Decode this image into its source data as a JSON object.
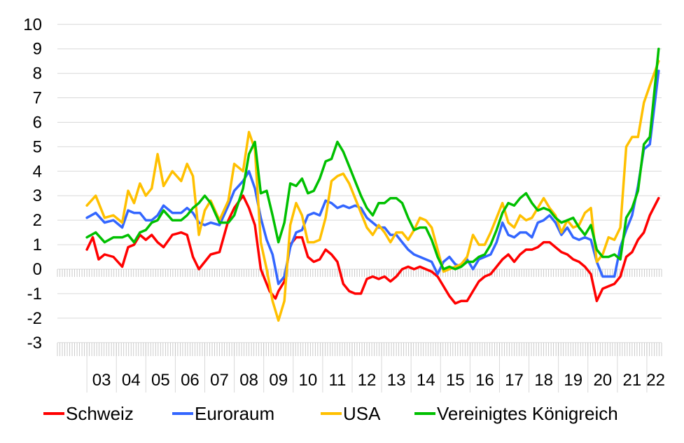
{
  "chart_data": {
    "type": "line",
    "ylim": [
      -3,
      10
    ],
    "yticks": [
      "10",
      "9",
      "8",
      "7",
      "6",
      "5",
      "4",
      "3",
      "2",
      "1",
      "0",
      "-1",
      "-2",
      "-3"
    ],
    "xlim": [
      2002.0,
      2022.5
    ],
    "xticks": [
      {
        "label": "03",
        "x": 2003.5
      },
      {
        "label": "04",
        "x": 2004.5
      },
      {
        "label": "05",
        "x": 2005.5
      },
      {
        "label": "06",
        "x": 2006.5
      },
      {
        "label": "07",
        "x": 2007.5
      },
      {
        "label": "08",
        "x": 2008.5
      },
      {
        "label": "09",
        "x": 2009.5
      },
      {
        "label": "10",
        "x": 2010.5
      },
      {
        "label": "11",
        "x": 2011.5
      },
      {
        "label": "12",
        "x": 2012.5
      },
      {
        "label": "13",
        "x": 2013.5
      },
      {
        "label": "14",
        "x": 2014.5
      },
      {
        "label": "15",
        "x": 2015.5
      },
      {
        "label": "16",
        "x": 2016.5
      },
      {
        "label": "17",
        "x": 2017.5
      },
      {
        "label": "18",
        "x": 2018.5
      },
      {
        "label": "19",
        "x": 2019.5
      },
      {
        "label": "20",
        "x": 2020.5
      },
      {
        "label": "21",
        "x": 2021.5
      },
      {
        "label": "22",
        "x": 2022.3
      }
    ],
    "grid": true,
    "legend_position": "bottom",
    "series": [
      {
        "name": "Schweiz",
        "color": "#ff0000",
        "x": [
          2003.0,
          2003.2,
          2003.4,
          2003.6,
          2003.9,
          2004.2,
          2004.4,
          2004.6,
          2004.8,
          2005.0,
          2005.2,
          2005.4,
          2005.6,
          2005.9,
          2006.2,
          2006.4,
          2006.6,
          2006.8,
          2007.0,
          2007.2,
          2007.5,
          2007.8,
          2008.0,
          2008.3,
          2008.5,
          2008.7,
          2008.9,
          2009.0,
          2009.2,
          2009.4,
          2009.5,
          2009.7,
          2009.9,
          2010.1,
          2010.3,
          2010.5,
          2010.7,
          2010.9,
          2011.1,
          2011.3,
          2011.5,
          2011.7,
          2011.9,
          2012.1,
          2012.3,
          2012.5,
          2012.7,
          2012.9,
          2013.1,
          2013.3,
          2013.5,
          2013.7,
          2013.9,
          2014.1,
          2014.3,
          2014.5,
          2014.7,
          2014.9,
          2015.1,
          2015.3,
          2015.5,
          2015.7,
          2015.9,
          2016.1,
          2016.3,
          2016.5,
          2016.7,
          2016.9,
          2017.1,
          2017.3,
          2017.5,
          2017.7,
          2017.9,
          2018.1,
          2018.3,
          2018.5,
          2018.7,
          2018.9,
          2019.1,
          2019.3,
          2019.5,
          2019.7,
          2019.9,
          2020.1,
          2020.3,
          2020.5,
          2020.7,
          2020.9,
          2021.1,
          2021.3,
          2021.5,
          2021.7,
          2021.9,
          2022.1,
          2022.4
        ],
        "y": [
          0.8,
          1.3,
          0.4,
          0.6,
          0.5,
          0.1,
          0.9,
          1.0,
          1.4,
          1.2,
          1.4,
          1.1,
          0.9,
          1.4,
          1.5,
          1.4,
          0.5,
          0.0,
          0.3,
          0.6,
          0.7,
          2.0,
          2.5,
          3.0,
          2.5,
          1.8,
          0.0,
          -0.3,
          -0.9,
          -1.2,
          -0.9,
          -0.5,
          1.0,
          1.3,
          1.3,
          0.5,
          0.3,
          0.4,
          0.8,
          0.6,
          0.3,
          -0.6,
          -0.9,
          -1.0,
          -1.0,
          -0.4,
          -0.3,
          -0.4,
          -0.3,
          -0.5,
          -0.3,
          0.0,
          0.1,
          0.0,
          0.1,
          0.0,
          -0.1,
          -0.3,
          -0.7,
          -1.1,
          -1.4,
          -1.3,
          -1.3,
          -0.9,
          -0.5,
          -0.3,
          -0.2,
          0.1,
          0.4,
          0.6,
          0.3,
          0.6,
          0.8,
          0.8,
          0.9,
          1.1,
          1.1,
          0.9,
          0.7,
          0.6,
          0.4,
          0.3,
          0.1,
          -0.2,
          -1.3,
          -0.8,
          -0.7,
          -0.6,
          -0.3,
          0.5,
          0.7,
          1.2,
          1.5,
          2.2,
          2.9
        ]
      },
      {
        "name": "Euroraum",
        "color": "#3366ff",
        "x": [
          2003.0,
          2003.3,
          2003.6,
          2003.9,
          2004.2,
          2004.4,
          2004.6,
          2004.8,
          2005.0,
          2005.2,
          2005.4,
          2005.6,
          2005.9,
          2006.2,
          2006.4,
          2006.6,
          2006.8,
          2007.0,
          2007.2,
          2007.5,
          2007.8,
          2008.0,
          2008.3,
          2008.5,
          2008.7,
          2008.9,
          2009.1,
          2009.3,
          2009.5,
          2009.7,
          2009.9,
          2010.1,
          2010.3,
          2010.5,
          2010.7,
          2010.9,
          2011.1,
          2011.3,
          2011.5,
          2011.7,
          2011.9,
          2012.1,
          2012.3,
          2012.5,
          2012.7,
          2012.9,
          2013.1,
          2013.3,
          2013.5,
          2013.7,
          2013.9,
          2014.1,
          2014.3,
          2014.5,
          2014.7,
          2014.9,
          2015.1,
          2015.3,
          2015.5,
          2015.7,
          2015.9,
          2016.1,
          2016.3,
          2016.5,
          2016.7,
          2016.9,
          2017.1,
          2017.3,
          2017.5,
          2017.7,
          2017.9,
          2018.1,
          2018.3,
          2018.5,
          2018.7,
          2018.9,
          2019.1,
          2019.3,
          2019.5,
          2019.7,
          2019.9,
          2020.1,
          2020.3,
          2020.5,
          2020.7,
          2020.9,
          2021.1,
          2021.3,
          2021.5,
          2021.7,
          2021.9,
          2022.1,
          2022.4
        ],
        "y": [
          2.1,
          2.3,
          1.9,
          2.0,
          1.7,
          2.4,
          2.3,
          2.3,
          2.0,
          2.0,
          2.2,
          2.6,
          2.3,
          2.3,
          2.5,
          2.3,
          1.9,
          1.8,
          1.9,
          1.8,
          2.6,
          3.2,
          3.6,
          4.0,
          3.3,
          2.1,
          1.2,
          0.6,
          -0.6,
          -0.3,
          0.9,
          1.5,
          1.6,
          2.2,
          2.3,
          2.2,
          2.8,
          2.7,
          2.5,
          2.6,
          2.5,
          2.6,
          2.5,
          2.1,
          1.9,
          1.7,
          1.7,
          1.4,
          1.4,
          1.1,
          0.8,
          0.6,
          0.5,
          0.4,
          0.3,
          -0.2,
          0.3,
          0.5,
          0.2,
          0.1,
          0.4,
          0.0,
          0.4,
          0.5,
          0.6,
          1.1,
          1.9,
          1.4,
          1.3,
          1.5,
          1.5,
          1.3,
          1.9,
          2.0,
          2.2,
          1.9,
          1.4,
          1.7,
          1.3,
          1.2,
          1.3,
          1.2,
          0.3,
          -0.3,
          -0.3,
          -0.3,
          0.9,
          1.6,
          2.2,
          3.4,
          4.9,
          5.1,
          8.1
        ]
      },
      {
        "name": "USA",
        "color": "#ffc000",
        "x": [
          2003.0,
          2003.3,
          2003.6,
          2003.9,
          2004.2,
          2004.4,
          2004.6,
          2004.8,
          2005.0,
          2005.2,
          2005.4,
          2005.6,
          2005.9,
          2006.2,
          2006.4,
          2006.6,
          2006.8,
          2007.0,
          2007.2,
          2007.5,
          2007.8,
          2008.0,
          2008.3,
          2008.5,
          2008.7,
          2008.9,
          2009.1,
          2009.3,
          2009.5,
          2009.7,
          2009.9,
          2010.1,
          2010.3,
          2010.5,
          2010.7,
          2010.9,
          2011.1,
          2011.3,
          2011.5,
          2011.7,
          2011.9,
          2012.1,
          2012.3,
          2012.5,
          2012.7,
          2012.9,
          2013.1,
          2013.3,
          2013.5,
          2013.7,
          2013.9,
          2014.1,
          2014.3,
          2014.5,
          2014.7,
          2014.9,
          2015.1,
          2015.3,
          2015.5,
          2015.7,
          2015.9,
          2016.1,
          2016.3,
          2016.5,
          2016.7,
          2016.9,
          2017.1,
          2017.3,
          2017.5,
          2017.7,
          2017.9,
          2018.1,
          2018.3,
          2018.5,
          2018.7,
          2018.9,
          2019.1,
          2019.3,
          2019.5,
          2019.7,
          2019.9,
          2020.1,
          2020.3,
          2020.5,
          2020.7,
          2020.9,
          2021.1,
          2021.3,
          2021.5,
          2021.7,
          2021.9,
          2022.1,
          2022.4
        ],
        "y": [
          2.6,
          3.0,
          2.1,
          2.2,
          1.9,
          3.2,
          2.7,
          3.5,
          3.0,
          3.3,
          4.7,
          3.4,
          4.0,
          3.6,
          4.3,
          3.8,
          1.4,
          2.4,
          2.8,
          2.0,
          2.8,
          4.3,
          4.0,
          5.6,
          4.9,
          1.1,
          0.0,
          -1.3,
          -2.1,
          -1.3,
          1.8,
          2.7,
          2.2,
          1.1,
          1.1,
          1.2,
          2.1,
          3.6,
          3.8,
          3.9,
          3.5,
          2.9,
          2.3,
          1.7,
          1.4,
          1.8,
          1.5,
          1.1,
          1.5,
          1.5,
          1.2,
          1.6,
          2.1,
          2.0,
          1.7,
          0.8,
          -0.1,
          0.0,
          0.1,
          0.2,
          0.5,
          1.4,
          1.0,
          1.0,
          1.5,
          2.1,
          2.7,
          1.9,
          1.7,
          2.2,
          2.0,
          2.1,
          2.5,
          2.9,
          2.5,
          2.2,
          1.5,
          2.0,
          1.7,
          1.8,
          2.3,
          2.5,
          0.3,
          0.6,
          1.3,
          1.2,
          1.7,
          5.0,
          5.4,
          5.4,
          6.8,
          7.5,
          8.5
        ]
      },
      {
        "name": "Vereinigtes Königreich",
        "color": "#00c000",
        "x": [
          2003.0,
          2003.3,
          2003.6,
          2003.9,
          2004.2,
          2004.4,
          2004.6,
          2004.8,
          2005.0,
          2005.2,
          2005.4,
          2005.6,
          2005.9,
          2006.2,
          2006.4,
          2006.6,
          2006.8,
          2007.0,
          2007.2,
          2007.5,
          2007.8,
          2008.0,
          2008.3,
          2008.5,
          2008.7,
          2008.9,
          2009.1,
          2009.3,
          2009.5,
          2009.7,
          2009.9,
          2010.1,
          2010.3,
          2010.5,
          2010.7,
          2010.9,
          2011.1,
          2011.3,
          2011.5,
          2011.7,
          2011.9,
          2012.1,
          2012.3,
          2012.5,
          2012.7,
          2012.9,
          2013.1,
          2013.3,
          2013.5,
          2013.7,
          2013.9,
          2014.1,
          2014.3,
          2014.5,
          2014.7,
          2014.9,
          2015.1,
          2015.3,
          2015.5,
          2015.7,
          2015.9,
          2016.1,
          2016.3,
          2016.5,
          2016.7,
          2016.9,
          2017.1,
          2017.3,
          2017.5,
          2017.7,
          2017.9,
          2018.1,
          2018.3,
          2018.5,
          2018.7,
          2018.9,
          2019.1,
          2019.3,
          2019.5,
          2019.7,
          2019.9,
          2020.1,
          2020.3,
          2020.5,
          2020.7,
          2020.9,
          2021.1,
          2021.3,
          2021.5,
          2021.7,
          2021.9,
          2022.1,
          2022.4
        ],
        "y": [
          1.3,
          1.5,
          1.1,
          1.3,
          1.3,
          1.4,
          1.1,
          1.5,
          1.6,
          1.9,
          2.0,
          2.4,
          2.0,
          2.0,
          2.2,
          2.5,
          2.7,
          3.0,
          2.7,
          1.9,
          1.9,
          2.2,
          3.3,
          4.7,
          5.2,
          3.1,
          3.2,
          2.2,
          1.1,
          1.9,
          3.5,
          3.4,
          3.7,
          3.1,
          3.2,
          3.7,
          4.4,
          4.5,
          5.2,
          4.8,
          4.2,
          3.6,
          3.0,
          2.5,
          2.2,
          2.7,
          2.7,
          2.9,
          2.9,
          2.7,
          2.1,
          1.6,
          1.7,
          1.7,
          1.2,
          0.5,
          0.0,
          0.1,
          0.0,
          0.1,
          0.3,
          0.3,
          0.5,
          0.6,
          1.0,
          1.6,
          2.3,
          2.7,
          2.6,
          2.9,
          3.1,
          2.7,
          2.4,
          2.5,
          2.4,
          2.1,
          1.9,
          2.0,
          2.1,
          1.7,
          1.4,
          1.8,
          0.8,
          0.5,
          0.5,
          0.6,
          0.4,
          2.1,
          2.5,
          3.2,
          5.1,
          5.4,
          9.0
        ]
      }
    ]
  }
}
